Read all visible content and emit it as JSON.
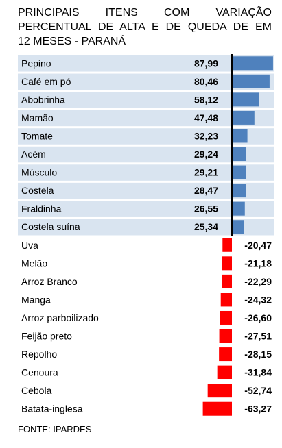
{
  "title_lines": [
    "PRINCIPAIS ITENS COM VARIAÇÃO",
    "PERCENTUAL DE ALTA E DE QUEDA DE EM",
    "12 MESES - PARANÁ"
  ],
  "source": "FONTE: IPARDES",
  "colors": {
    "positive": "#4f81bd",
    "negative": "#ff0000",
    "band": "#d9e4f0",
    "axis": "#000000"
  },
  "chart_data": {
    "type": "bar",
    "orientation": "horizontal",
    "title": "PRINCIPAIS ITENS COM VARIAÇÃO PERCENTUAL DE ALTA E DE QUEDA DE EM 12 MESES - PARANÁ",
    "categories": [
      "Pepino",
      "Café em pó",
      "Abobrinha",
      "Mamão",
      "Tomate",
      "Acém",
      "Músculo",
      "Costela",
      "Fraldinha",
      "Costela suína",
      "Uva",
      "Melão",
      "Arroz Branco",
      "Manga",
      "Arroz parboilizado",
      "Feijão preto",
      "Repolho",
      "Cenoura",
      "Cebola",
      "Batata-inglesa"
    ],
    "values": [
      87.99,
      80.46,
      58.12,
      47.48,
      32.23,
      29.24,
      29.21,
      28.47,
      26.55,
      25.34,
      -20.47,
      -21.18,
      -22.29,
      -24.32,
      -26.6,
      -27.51,
      -28.15,
      -31.84,
      -52.74,
      -63.27
    ],
    "value_labels": [
      "87,99",
      "80,46",
      "58,12",
      "47,48",
      "32,23",
      "29,24",
      "29,21",
      "28,47",
      "26,55",
      "25,34",
      "-20,47",
      "-21,18",
      "-22,29",
      "-24,32",
      "-26,60",
      "-27,51",
      "-28,15",
      "-31,84",
      "-52,74",
      "-63,27"
    ],
    "xlabel": "",
    "ylabel": "",
    "grid": false,
    "legend": "none"
  }
}
